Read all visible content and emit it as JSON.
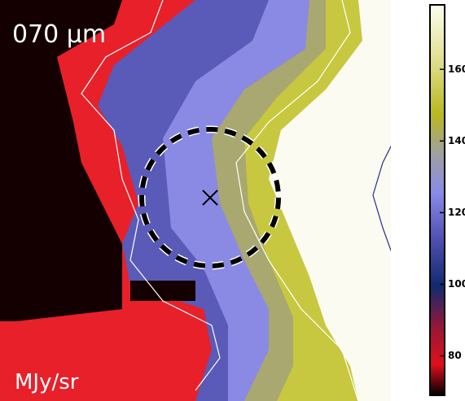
{
  "chart_data": {
    "type": "image",
    "label": "070 μm",
    "unit": "MJy/sr",
    "colorbar": {
      "lim": [
        69,
        178
      ],
      "ticks": [
        80,
        100,
        120,
        140,
        160
      ]
    }
  }
}
